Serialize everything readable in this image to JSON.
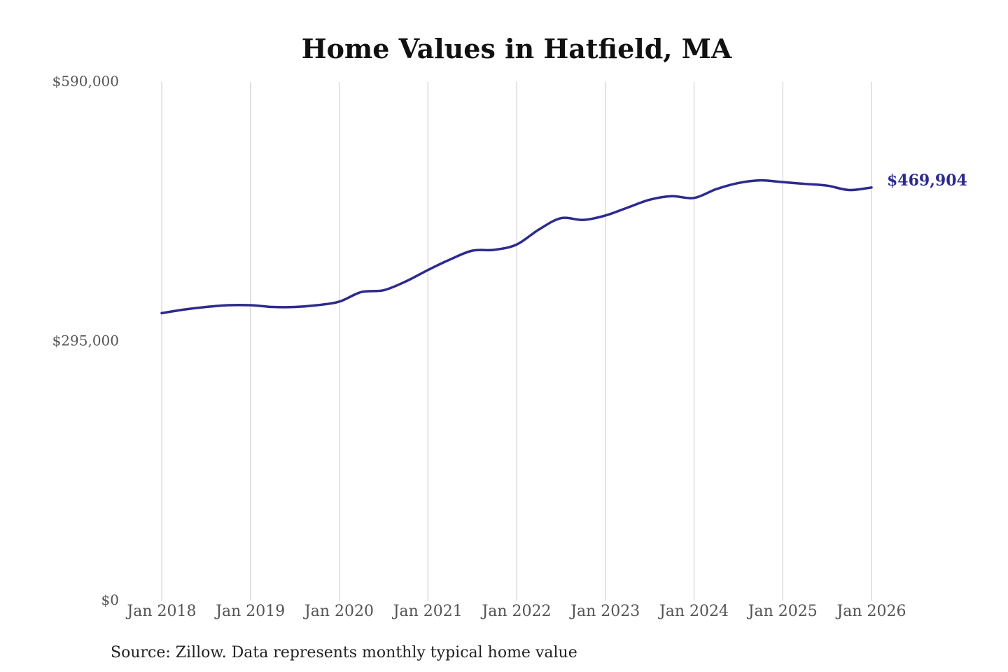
{
  "chart_data": {
    "type": "line",
    "title": "Home Values in Hatfield, MA",
    "source": "Source: Zillow. Data represents monthly typical home value",
    "ylim": [
      0,
      590000
    ],
    "yticks": [
      {
        "value": 590000,
        "label": "$590,000"
      },
      {
        "value": 295000,
        "label": "$295,000"
      },
      {
        "value": 0,
        "label": "$0"
      }
    ],
    "xlim": [
      2018.0,
      2026.0
    ],
    "xticks": [
      {
        "value": 2018,
        "label": "Jan 2018"
      },
      {
        "value": 2019,
        "label": "Jan 2019"
      },
      {
        "value": 2020,
        "label": "Jan 2020"
      },
      {
        "value": 2021,
        "label": "Jan 2021"
      },
      {
        "value": 2022,
        "label": "Jan 2022"
      },
      {
        "value": 2023,
        "label": "Jan 2023"
      },
      {
        "value": 2024,
        "label": "Jan 2024"
      },
      {
        "value": 2025,
        "label": "Jan 2025"
      },
      {
        "value": 2026,
        "label": "Jan 2026"
      }
    ],
    "grid": "vertical",
    "line_color": "#2d2a8e",
    "end_label": "$469,904",
    "series": [
      {
        "x": [
          2018.0,
          2018.25,
          2018.5,
          2018.75,
          2019.0,
          2019.25,
          2019.5,
          2019.75,
          2020.0,
          2020.25,
          2020.5,
          2020.75,
          2021.0,
          2021.25,
          2021.5,
          2021.75,
          2022.0,
          2022.25,
          2022.5,
          2022.75,
          2023.0,
          2023.25,
          2023.5,
          2023.75,
          2024.0,
          2024.25,
          2024.5,
          2024.75,
          2025.0,
          2025.25,
          2025.5,
          2025.75,
          2026.0
        ],
        "values": [
          327000,
          331000,
          334000,
          336000,
          336000,
          334000,
          334000,
          336000,
          340000,
          351000,
          353000,
          363000,
          376000,
          388000,
          398000,
          399000,
          405000,
          422000,
          435000,
          433000,
          438000,
          447000,
          456000,
          460000,
          458000,
          468000,
          475000,
          478000,
          476000,
          474000,
          472000,
          467000,
          469904
        ]
      }
    ]
  }
}
